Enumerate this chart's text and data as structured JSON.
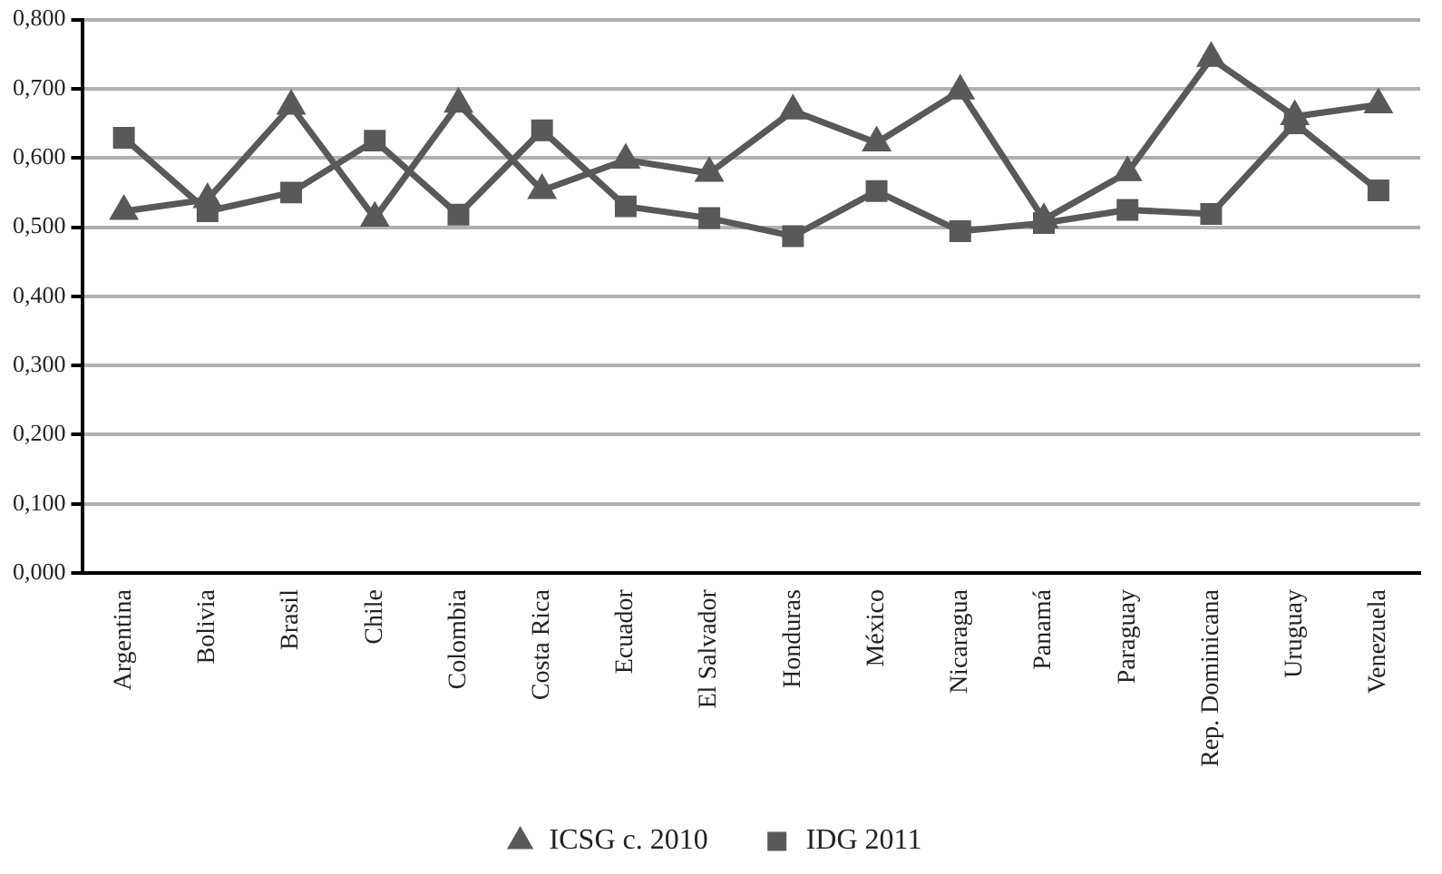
{
  "chart_data": {
    "type": "line",
    "categories": [
      "Argentina",
      "Bolivia",
      "Brasil",
      "Chile",
      "Colombia",
      "Costa Rica",
      "Ecuador",
      "El Salvador",
      "Honduras",
      "México",
      "Nicaragua",
      "Panamá",
      "Paraguay",
      "Rep. Dominicana",
      "Uruguay",
      "Venezuela"
    ],
    "series": [
      {
        "name": "ICSG c. 2010",
        "color": "#595959",
        "marker": "triangle",
        "values": [
          0.523,
          0.54,
          0.675,
          0.513,
          0.678,
          0.553,
          0.597,
          0.578,
          0.668,
          0.622,
          0.697,
          0.511,
          0.579,
          0.744,
          0.66,
          0.677
        ]
      },
      {
        "name": "IDG 2011",
        "color": "#595959",
        "marker": "square",
        "values": [
          0.629,
          0.523,
          0.55,
          0.625,
          0.518,
          0.64,
          0.53,
          0.513,
          0.487,
          0.552,
          0.494,
          0.506,
          0.525,
          0.519,
          0.65,
          0.553
        ]
      }
    ],
    "ylim": [
      0,
      0.8
    ],
    "yticks": [
      {
        "value": 0,
        "label": "0,000"
      },
      {
        "value": 0.1,
        "label": "0,100"
      },
      {
        "value": 0.2,
        "label": "0,200"
      },
      {
        "value": 0.3,
        "label": "0,300"
      },
      {
        "value": 0.4,
        "label": "0,400"
      },
      {
        "value": 0.5,
        "label": "0,500"
      },
      {
        "value": 0.6,
        "label": "0,600"
      },
      {
        "value": 0.7,
        "label": "0,700"
      },
      {
        "value": 0.8,
        "label": "0,800"
      }
    ],
    "grid": "y",
    "legend": "bottom",
    "line_style": "solid"
  }
}
